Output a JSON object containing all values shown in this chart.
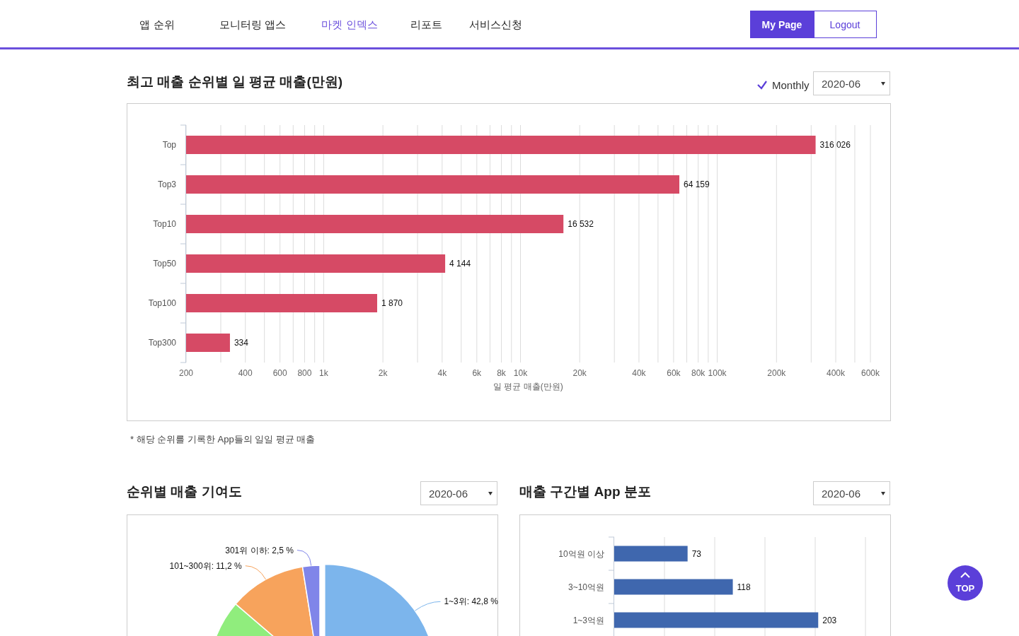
{
  "chart_data": [
    {
      "type": "bar",
      "orientation": "horizontal",
      "title": "최고 매출 순위별 일 평균 매출(만원)",
      "xlabel": "일 평균 매출(만원)",
      "categories": [
        "Top",
        "Top3",
        "Top10",
        "Top50",
        "Top100",
        "Top300"
      ],
      "values": [
        316026,
        64159,
        16532,
        4144,
        1870,
        334
      ],
      "value_labels": [
        "316 026",
        "64 159",
        "16 532",
        "4 144",
        "1 870",
        "334"
      ],
      "color": "#d64a65",
      "log": "x",
      "xlim": [
        200,
        600000
      ],
      "xticks": [
        200,
        {
          "value": 300,
          "label": null
        },
        400,
        {
          "value": 500,
          "label": null
        },
        600,
        {
          "value": 700,
          "label": null
        },
        800,
        {
          "value": 900,
          "label": null
        },
        {
          "value": 1000,
          "label": "1k"
        },
        {
          "value": 2000,
          "label": "2k"
        },
        {
          "value": 3000,
          "label": null
        },
        {
          "value": 4000,
          "label": "4k"
        },
        {
          "value": 5000,
          "label": null
        },
        {
          "value": 6000,
          "label": "6k"
        },
        {
          "value": 7000,
          "label": null
        },
        {
          "value": 8000,
          "label": "8k"
        },
        {
          "value": 9000,
          "label": null
        },
        {
          "value": 10000,
          "label": "10k"
        },
        {
          "value": 20000,
          "label": "20k"
        },
        {
          "value": 30000,
          "label": null
        },
        {
          "value": 40000,
          "label": "40k"
        },
        {
          "value": 50000,
          "label": null
        },
        {
          "value": 60000,
          "label": "60k"
        },
        {
          "value": 70000,
          "label": null
        },
        {
          "value": 80000,
          "label": "80k"
        },
        {
          "value": 90000,
          "label": null
        },
        {
          "value": 100000,
          "label": "100k"
        },
        {
          "value": 200000,
          "label": "200k"
        },
        {
          "value": 300000,
          "label": null
        },
        {
          "value": 400000,
          "label": "400k"
        },
        {
          "value": 500000,
          "label": null
        },
        {
          "value": 600000,
          "label": "600k"
        }
      ],
      "grid": "x",
      "annotations": [
        "앱 순위",
        "모니터링 앱스",
        "마켓 인덱스",
        "리포트",
        "서비스신청",
        "My Page",
        "Logout",
        "Monthly",
        "2020-06",
        "* 해당 순위를 기록한 App들의 일일 평균 매출",
        "TOP"
      ]
    },
    {
      "type": "pie",
      "title": "순위별 매출 기여도",
      "categories": [
        "1~3위",
        null,
        "101~300위",
        "301위 이하"
      ],
      "values": [
        42.8,
        43.5,
        11.2,
        2.5
      ],
      "value_labels": [
        "42,8 %",
        null,
        "11,2 %",
        "2,5 %"
      ],
      "colors": [
        "#7cb5ec",
        "#90ed7d",
        "#f7a35c",
        "#8085e9"
      ],
      "annotations": [
        "2020-06"
      ]
    },
    {
      "type": "bar",
      "orientation": "horizontal",
      "title": "매출 구간별 App 분포",
      "categories": [
        "10억원 이상",
        "3~10억원",
        "1~3억원"
      ],
      "values": [
        73,
        118,
        203
      ],
      "data_labels": true,
      "color": "#3f67ae",
      "xlim": [
        0,
        250
      ],
      "xticks": [
        {
          "value": 50,
          "label": null
        },
        {
          "value": 100,
          "label": null
        },
        {
          "value": 150,
          "label": null
        },
        {
          "value": 200,
          "label": null
        },
        {
          "value": 250,
          "label": null
        }
      ],
      "grid": "x",
      "tick_labels": "y",
      "annotations": [
        "2020-06"
      ]
    }
  ]
}
